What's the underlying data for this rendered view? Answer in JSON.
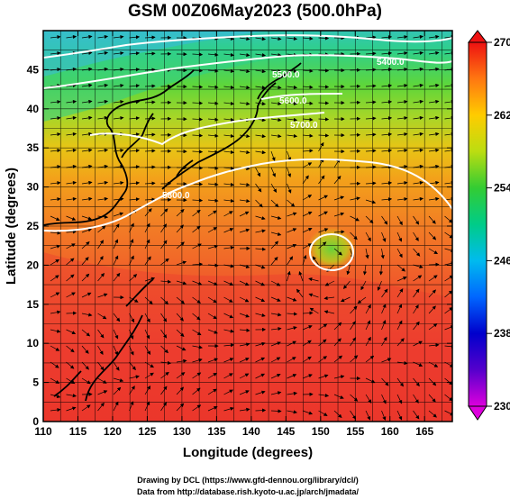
{
  "title": "GSM 00Z06May2023 (500.0hPa)",
  "map": {
    "xlabel": "Longitude (degrees)",
    "ylabel": "Latitude (degrees)",
    "x_ticks": [
      "110",
      "115",
      "120",
      "125",
      "130",
      "135",
      "140",
      "145",
      "150",
      "155",
      "160",
      "165"
    ],
    "y_ticks": [
      "0",
      "5",
      "10",
      "15",
      "20",
      "25",
      "30",
      "35",
      "40",
      "45"
    ],
    "contour_labels": [
      "5400.0",
      "5500.0",
      "5600.0",
      "5800.0",
      "5700.0"
    ]
  },
  "colorbar": {
    "tick_labels": [
      "270",
      "262",
      "254",
      "246",
      "238",
      "230"
    ],
    "colors": [
      "#cc00cc",
      "#0000cc",
      "#0055ff",
      "#00bbdd",
      "#00dd66",
      "#33cc33",
      "#cccc00",
      "#ffaa00",
      "#ff5500",
      "#ee2222"
    ]
  },
  "credits": {
    "line1": "Drawing by DCL (https://www.gfd-dennou.org/library/dcl/)",
    "line2": "Data from http://database.rish.kyoto-u.ac.jp/arch/jmadata/"
  }
}
